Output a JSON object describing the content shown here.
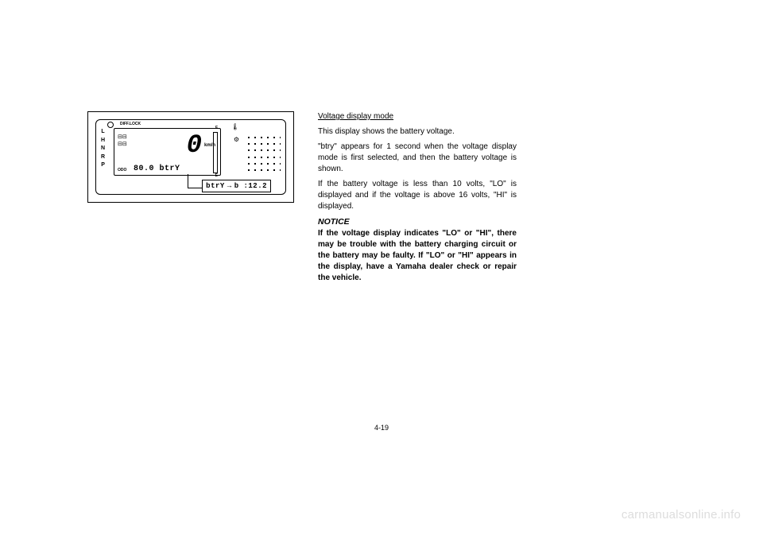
{
  "page_number": "4-19",
  "watermark": "carmanualsonline.info",
  "diagram": {
    "gear_positions": [
      "L",
      "H",
      "N",
      "R",
      "P"
    ],
    "difflock_label": "DIFF.LOCK",
    "odo_label": "ODO",
    "speed_unit": "km/h",
    "speed_value": "0",
    "fuel_full": "F",
    "fuel_empty": "E",
    "odo_reading": "80.0 btrY",
    "drive_icon_1": "⊟⊟",
    "drive_icon_2": "⊟⊟",
    "temp_symbol": "🌡",
    "engine_symbol": "⚙",
    "callout_left": "btrY",
    "callout_arrow": "→",
    "callout_right": "b   :12.2"
  },
  "text": {
    "heading": "Voltage display mode",
    "p1": "This display shows the battery voltage.",
    "p2": "\"btry\" appears for 1 second when the voltage display mode is first selected, and then the battery voltage is shown.",
    "p3": "If the battery voltage is less than 10 volts, \"LO\" is displayed and if the voltage is above 16 volts, \"HI\" is displayed.",
    "notice_label": "NOTICE",
    "notice_body": "If the voltage display indicates \"LO\" or \"HI\", there may be trouble with the battery charging circuit or the battery may be faulty. If \"LO\" or \"HI\" appears in the display, have a Yamaha dealer check or repair the vehicle."
  }
}
